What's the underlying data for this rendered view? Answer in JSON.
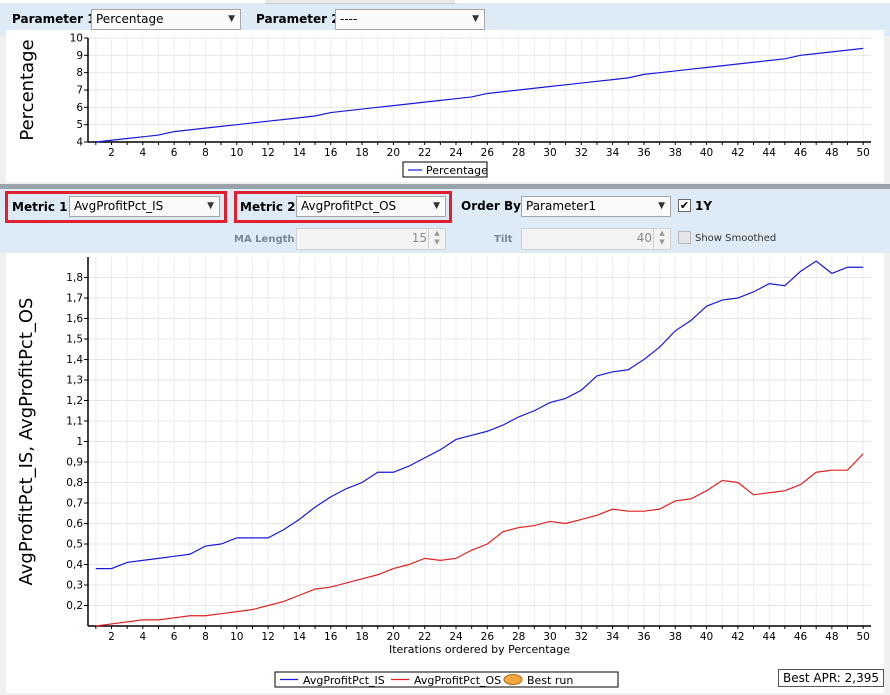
{
  "toolbar_top": {
    "param1_label": "Parameter 1",
    "param1_value": "Percentage",
    "param2_label": "Parameter 2",
    "param2_value": "----"
  },
  "controls": {
    "metric1_label": "Metric 1",
    "metric1_value": "AvgProfitPct_IS",
    "metric2_label": "Metric 2",
    "metric2_value": "AvgProfitPct_OS",
    "orderby_label": "Order By",
    "orderby_value": "Parameter1",
    "oneyear_label": "1Y",
    "oneyear_checked": true,
    "ma_label": "MA Length",
    "ma_value": "15",
    "tilt_label": "Tilt",
    "tilt_value": "40",
    "smoothed_label": "Show Smoothed",
    "smoothed_checked": false
  },
  "best_apr": "Best APR: 2,395",
  "icons": {
    "dropdown": "chevron-down-icon",
    "check": "checkmark-icon",
    "spinner": "spinner-arrows-icon"
  },
  "colors": {
    "series1": "#1a1adb",
    "series2": "#e02222",
    "best_run": "#f4a640",
    "highlight": "#e0202e",
    "panel": "#dcebf5"
  },
  "chart_data": [
    {
      "type": "line",
      "title": "",
      "xlabel": "",
      "ylabel": "Percentage",
      "x": [
        1,
        2,
        3,
        4,
        5,
        6,
        7,
        8,
        9,
        10,
        11,
        12,
        13,
        14,
        15,
        16,
        17,
        18,
        19,
        20,
        21,
        22,
        23,
        24,
        25,
        26,
        27,
        28,
        29,
        30,
        31,
        32,
        33,
        34,
        35,
        36,
        37,
        38,
        39,
        40,
        41,
        42,
        43,
        44,
        45,
        46,
        47,
        48,
        49,
        50
      ],
      "xticks": [
        2,
        4,
        6,
        8,
        10,
        12,
        14,
        16,
        18,
        20,
        22,
        24,
        26,
        28,
        30,
        32,
        34,
        36,
        38,
        40,
        42,
        44,
        46,
        48,
        50
      ],
      "xlim": [
        0.5,
        50.5
      ],
      "ylim": [
        4,
        10
      ],
      "yticks": [
        4,
        5,
        6,
        7,
        8,
        9,
        10
      ],
      "series": [
        {
          "name": "Percentage",
          "color": "#1a1adb",
          "values": [
            4.0,
            4.1,
            4.2,
            4.3,
            4.4,
            4.6,
            4.7,
            4.8,
            4.9,
            5.0,
            5.1,
            5.2,
            5.3,
            5.4,
            5.5,
            5.7,
            5.8,
            5.9,
            6.0,
            6.1,
            6.2,
            6.3,
            6.4,
            6.5,
            6.6,
            6.8,
            6.9,
            7.0,
            7.1,
            7.2,
            7.3,
            7.4,
            7.5,
            7.6,
            7.7,
            7.9,
            8.0,
            8.1,
            8.2,
            8.3,
            8.4,
            8.5,
            8.6,
            8.7,
            8.8,
            9.0,
            9.1,
            9.2,
            9.3,
            9.4
          ]
        }
      ],
      "legend": "bottom-center",
      "grid": true
    },
    {
      "type": "line",
      "title": "",
      "xlabel": "Iterations ordered by Percentage",
      "ylabel": "AvgProfitPct_IS, AvgProfitPct_OS",
      "x": [
        1,
        2,
        3,
        4,
        5,
        6,
        7,
        8,
        9,
        10,
        11,
        12,
        13,
        14,
        15,
        16,
        17,
        18,
        19,
        20,
        21,
        22,
        23,
        24,
        25,
        26,
        27,
        28,
        29,
        30,
        31,
        32,
        33,
        34,
        35,
        36,
        37,
        38,
        39,
        40,
        41,
        42,
        43,
        44,
        45,
        46,
        47,
        48,
        49,
        50
      ],
      "xticks": [
        2,
        4,
        6,
        8,
        10,
        12,
        14,
        16,
        18,
        20,
        22,
        24,
        26,
        28,
        30,
        32,
        34,
        36,
        38,
        40,
        42,
        44,
        46,
        48,
        50
      ],
      "xlim": [
        0.5,
        50.5
      ],
      "ylim": [
        0.1,
        1.9
      ],
      "yticks": [
        0.2,
        0.3,
        0.4,
        0.5,
        0.6,
        0.7,
        0.8,
        0.9,
        1.0,
        1.1,
        1.2,
        1.3,
        1.4,
        1.5,
        1.6,
        1.7,
        1.8
      ],
      "ytick_labels": [
        "0,2",
        "0,3",
        "0,4",
        "0,5",
        "0,6",
        "0,7",
        "0,8",
        "0,9",
        "1",
        "1,1",
        "1,2",
        "1,3",
        "1,4",
        "1,5",
        "1,6",
        "1,7",
        "1,8"
      ],
      "series": [
        {
          "name": "AvgProfitPct_IS",
          "color": "#1a1adb",
          "values": [
            0.38,
            0.38,
            0.41,
            0.42,
            0.43,
            0.44,
            0.45,
            0.49,
            0.5,
            0.53,
            0.53,
            0.53,
            0.57,
            0.62,
            0.68,
            0.73,
            0.77,
            0.8,
            0.85,
            0.85,
            0.88,
            0.92,
            0.96,
            1.01,
            1.03,
            1.05,
            1.08,
            1.12,
            1.15,
            1.19,
            1.21,
            1.25,
            1.32,
            1.34,
            1.35,
            1.4,
            1.46,
            1.54,
            1.59,
            1.66,
            1.69,
            1.7,
            1.73,
            1.77,
            1.76,
            1.83,
            1.88,
            1.82,
            1.85,
            1.85
          ]
        },
        {
          "name": "AvgProfitPct_OS",
          "color": "#e02222",
          "values": [
            0.1,
            0.11,
            0.12,
            0.13,
            0.13,
            0.14,
            0.15,
            0.15,
            0.16,
            0.17,
            0.18,
            0.2,
            0.22,
            0.25,
            0.28,
            0.29,
            0.31,
            0.33,
            0.35,
            0.38,
            0.4,
            0.43,
            0.42,
            0.43,
            0.47,
            0.5,
            0.56,
            0.58,
            0.59,
            0.61,
            0.6,
            0.62,
            0.64,
            0.67,
            0.66,
            0.66,
            0.67,
            0.71,
            0.72,
            0.76,
            0.81,
            0.8,
            0.74,
            0.75,
            0.76,
            0.79,
            0.85,
            0.86,
            0.86,
            0.94
          ]
        }
      ],
      "best_run_label": "Best run",
      "legend": "bottom-center",
      "grid": true
    }
  ]
}
